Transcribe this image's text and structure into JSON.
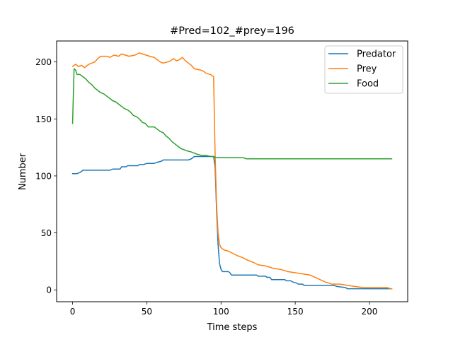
{
  "chart_data": {
    "type": "line",
    "title": "#Pred=102_#prey=196",
    "xlabel": "Time steps",
    "ylabel": "Number",
    "xlim": [
      -10.75,
      225.75
    ],
    "ylim": [
      -10.4,
      218.4
    ],
    "xticks": [
      0,
      50,
      100,
      150,
      200
    ],
    "yticks": [
      0,
      50,
      100,
      150,
      200
    ],
    "grid": false,
    "legend_position": "top-right",
    "series": [
      {
        "name": "Predator",
        "color": "#1f77b4",
        "points": [
          [
            0,
            102
          ],
          [
            3,
            102
          ],
          [
            5,
            103
          ],
          [
            7,
            105
          ],
          [
            25,
            105
          ],
          [
            27,
            106
          ],
          [
            32,
            106
          ],
          [
            33,
            108
          ],
          [
            36,
            108
          ],
          [
            37,
            109
          ],
          [
            44,
            109
          ],
          [
            45,
            110
          ],
          [
            48,
            110
          ],
          [
            50,
            111
          ],
          [
            55,
            111
          ],
          [
            57,
            112
          ],
          [
            60,
            113
          ],
          [
            61,
            114
          ],
          [
            78,
            114
          ],
          [
            80,
            115
          ],
          [
            82,
            117
          ],
          [
            95,
            117
          ],
          [
            96,
            108
          ],
          [
            97,
            70
          ],
          [
            98,
            40
          ],
          [
            99,
            23
          ],
          [
            100,
            18
          ],
          [
            101,
            16
          ],
          [
            105,
            16
          ],
          [
            106,
            15
          ],
          [
            107,
            13
          ],
          [
            124,
            13
          ],
          [
            125,
            12
          ],
          [
            130,
            12
          ],
          [
            131,
            11
          ],
          [
            133,
            11
          ],
          [
            134,
            9
          ],
          [
            143,
            9
          ],
          [
            144,
            8
          ],
          [
            147,
            8
          ],
          [
            148,
            7
          ],
          [
            151,
            6
          ],
          [
            152,
            5
          ],
          [
            155,
            5
          ],
          [
            156,
            4
          ],
          [
            176,
            4
          ],
          [
            178,
            3
          ],
          [
            184,
            2
          ],
          [
            185,
            1
          ],
          [
            210,
            1
          ],
          [
            215,
            1
          ]
        ]
      },
      {
        "name": "Prey",
        "color": "#ff7f0e",
        "points": [
          [
            0,
            196
          ],
          [
            2,
            198
          ],
          [
            4,
            196
          ],
          [
            6,
            197
          ],
          [
            8,
            195
          ],
          [
            11,
            198
          ],
          [
            15,
            200
          ],
          [
            17,
            203
          ],
          [
            19,
            205
          ],
          [
            23,
            205
          ],
          [
            25,
            204
          ],
          [
            28,
            206
          ],
          [
            31,
            205
          ],
          [
            33,
            207
          ],
          [
            38,
            205
          ],
          [
            42,
            206
          ],
          [
            45,
            208
          ],
          [
            47,
            207
          ],
          [
            52,
            205
          ],
          [
            55,
            204
          ],
          [
            57,
            202
          ],
          [
            59,
            200
          ],
          [
            61,
            199
          ],
          [
            64,
            200
          ],
          [
            66,
            201
          ],
          [
            68,
            203
          ],
          [
            70,
            201
          ],
          [
            72,
            202
          ],
          [
            74,
            204
          ],
          [
            76,
            201
          ],
          [
            78,
            199
          ],
          [
            80,
            197
          ],
          [
            82,
            194
          ],
          [
            86,
            193
          ],
          [
            88,
            192
          ],
          [
            90,
            190
          ],
          [
            93,
            189
          ],
          [
            95,
            187
          ],
          [
            96,
            120
          ],
          [
            97,
            75
          ],
          [
            98,
            50
          ],
          [
            99,
            40
          ],
          [
            100,
            37
          ],
          [
            102,
            35
          ],
          [
            105,
            34
          ],
          [
            108,
            32
          ],
          [
            111,
            30
          ],
          [
            115,
            28
          ],
          [
            118,
            26
          ],
          [
            122,
            24
          ],
          [
            125,
            22
          ],
          [
            130,
            21
          ],
          [
            135,
            19
          ],
          [
            140,
            18
          ],
          [
            145,
            16
          ],
          [
            150,
            15
          ],
          [
            155,
            14
          ],
          [
            160,
            13
          ],
          [
            165,
            10
          ],
          [
            170,
            7
          ],
          [
            175,
            5
          ],
          [
            180,
            5
          ],
          [
            185,
            4
          ],
          [
            190,
            3
          ],
          [
            196,
            2
          ],
          [
            204,
            2
          ],
          [
            208,
            2
          ],
          [
            212,
            2
          ],
          [
            214,
            1
          ],
          [
            215,
            1
          ]
        ]
      },
      {
        "name": "Food",
        "color": "#2ca02c",
        "points": [
          [
            0,
            146
          ],
          [
            1,
            194
          ],
          [
            2,
            193
          ],
          [
            3,
            189
          ],
          [
            5,
            189
          ],
          [
            7,
            187
          ],
          [
            9,
            185
          ],
          [
            11,
            182
          ],
          [
            13,
            180
          ],
          [
            15,
            177
          ],
          [
            17,
            175
          ],
          [
            19,
            173
          ],
          [
            21,
            172
          ],
          [
            23,
            170
          ],
          [
            25,
            168
          ],
          [
            27,
            166
          ],
          [
            29,
            165
          ],
          [
            31,
            163
          ],
          [
            33,
            161
          ],
          [
            35,
            159
          ],
          [
            37,
            158
          ],
          [
            39,
            156
          ],
          [
            41,
            153
          ],
          [
            43,
            152
          ],
          [
            45,
            150
          ],
          [
            47,
            147
          ],
          [
            49,
            146
          ],
          [
            51,
            143
          ],
          [
            55,
            143
          ],
          [
            57,
            141
          ],
          [
            59,
            139
          ],
          [
            61,
            138
          ],
          [
            63,
            135
          ],
          [
            65,
            133
          ],
          [
            67,
            130
          ],
          [
            69,
            128
          ],
          [
            71,
            126
          ],
          [
            73,
            124
          ],
          [
            75,
            123
          ],
          [
            77,
            122
          ],
          [
            80,
            121
          ],
          [
            82,
            120
          ],
          [
            84,
            119
          ],
          [
            87,
            118
          ],
          [
            90,
            118
          ],
          [
            93,
            117
          ],
          [
            95,
            117
          ],
          [
            97,
            116
          ],
          [
            100,
            116
          ],
          [
            115,
            116
          ],
          [
            117,
            115
          ],
          [
            150,
            115
          ],
          [
            215,
            115
          ]
        ]
      }
    ]
  }
}
